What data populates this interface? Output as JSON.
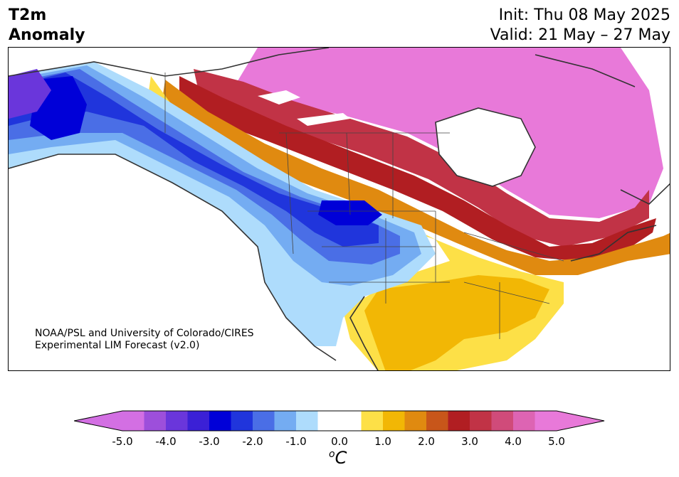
{
  "header": {
    "title_line1": "T2m",
    "title_line2": "Anomaly",
    "init": "Init: Thu 08 May 2025",
    "valid": "Valid: 21 May – 27 May"
  },
  "credit": {
    "line1": "NOAA/PSL and University of Colorado/CIRES",
    "line2": "Experimental LIM Forecast (v2.0)"
  },
  "colorbar": {
    "units_symbol": "o",
    "units_letter": "C",
    "ticks": [
      "-5.0",
      "-4.0",
      "-3.0",
      "-2.0",
      "-1.0",
      "0.0",
      "1.0",
      "2.0",
      "3.0",
      "4.0",
      "5.0"
    ],
    "colors": [
      "#d36fe3",
      "#9d4fdb",
      "#6a36db",
      "#3b20d6",
      "#0000d8",
      "#2035dc",
      "#4a6ee6",
      "#74acf2",
      "#aedcfc",
      "#ffffff",
      "#ffffff",
      "#fde047",
      "#f2b705",
      "#e08a10",
      "#c8561a",
      "#b11e22",
      "#c13346",
      "#d04b7a",
      "#dd64b3",
      "#e879d9"
    ]
  }
}
